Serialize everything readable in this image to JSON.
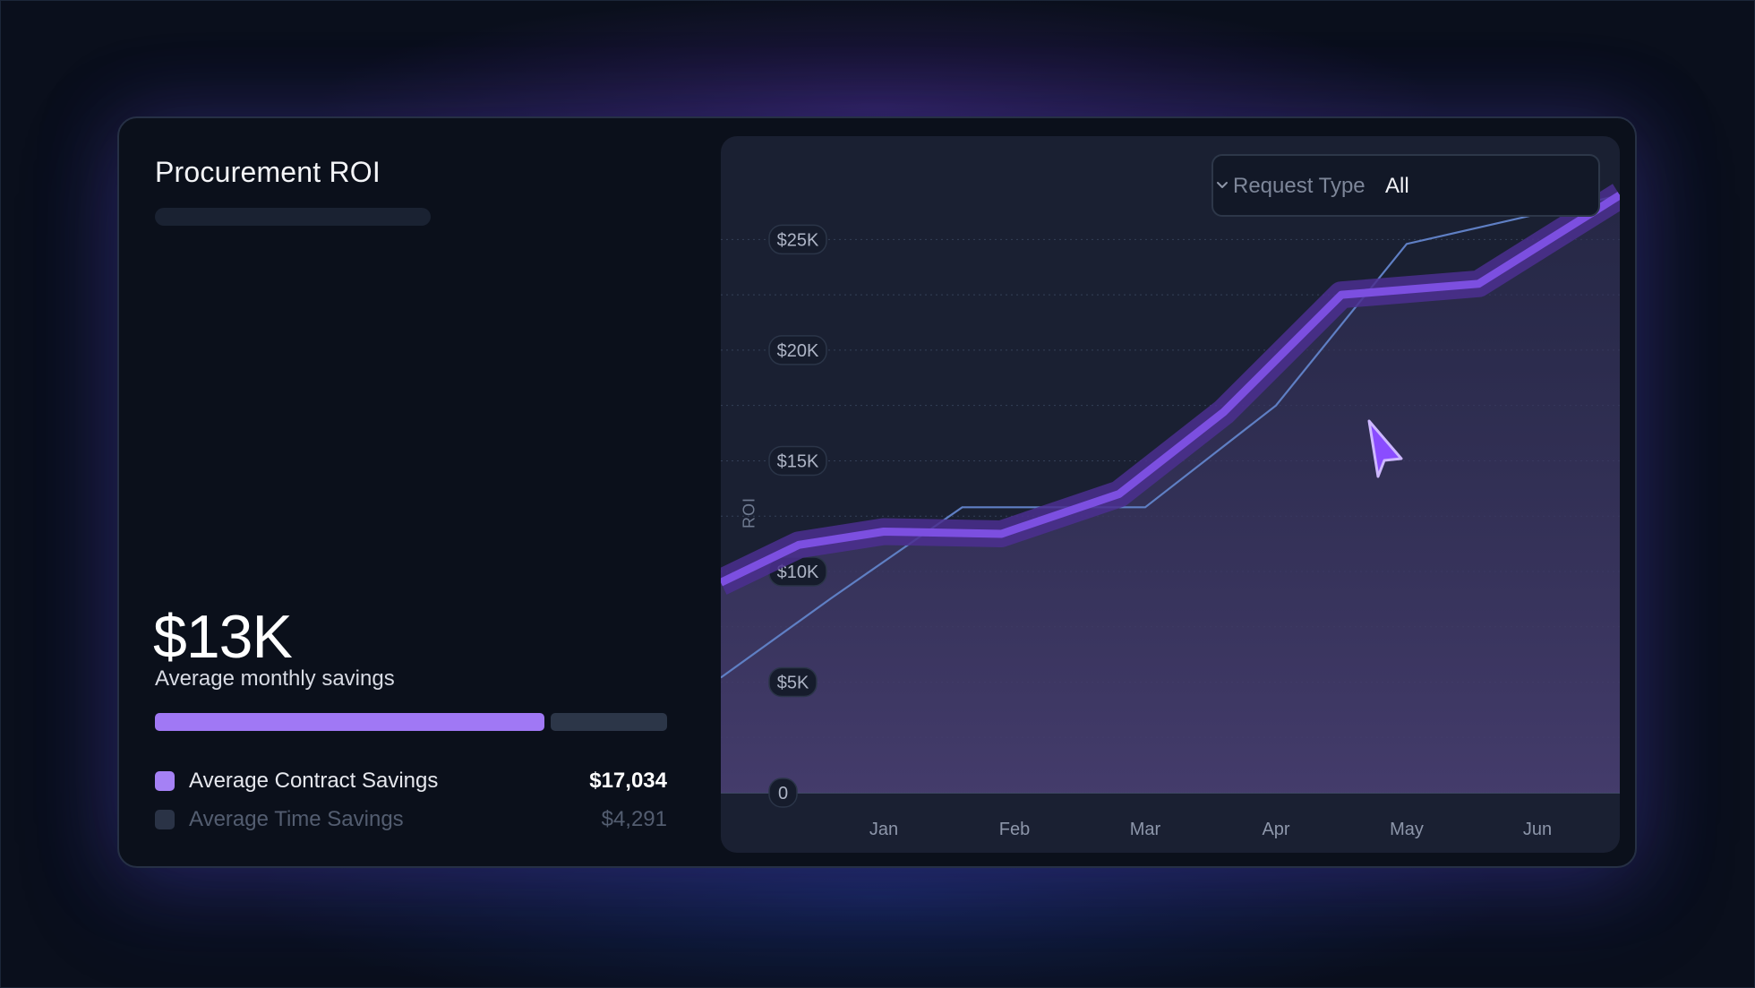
{
  "card": {
    "title": "Procurement ROI",
    "summary_value": "$13K",
    "summary_label": "Average monthly savings",
    "progress_fraction": 0.76,
    "legend": [
      {
        "label": "Average Contract Savings",
        "value": "$17,034",
        "color": "#a581f5"
      },
      {
        "label": "Average Time Savings",
        "value": "$4,291",
        "color": "#2a3346"
      }
    ]
  },
  "filter": {
    "label": "Request Type",
    "value": "All",
    "icon": "chevron-down-icon"
  },
  "colors": {
    "primary_series": "#7c4fe0",
    "secondary_series": "#5f7fc4",
    "cursor": "#8a4dff"
  },
  "cursor_icon": "cursor-arrow-icon",
  "chart_data": {
    "type": "line",
    "ylabel": "ROI",
    "categories": [
      "Jan",
      "Feb",
      "Mar",
      "Apr",
      "May",
      "Jun"
    ],
    "ylim": [
      0,
      27000
    ],
    "y_ticks": [
      {
        "value": 0,
        "label": "0"
      },
      {
        "value": 5000,
        "label": "$5K"
      },
      {
        "value": 10000,
        "label": "$10K"
      },
      {
        "value": 15000,
        "label": "$15K"
      },
      {
        "value": 20000,
        "label": "$20K"
      },
      {
        "value": 25000,
        "label": "$25K"
      }
    ],
    "grid": true,
    "series": [
      {
        "points": [
          {
            "x": 0.0,
            "y": 9500
          },
          {
            "x": 0.35,
            "y": 11200
          },
          {
            "x": 1.0,
            "y": 11800
          },
          {
            "x": 1.9,
            "y": 11700
          },
          {
            "x": 2.8,
            "y": 13500
          },
          {
            "x": 3.6,
            "y": 17200
          },
          {
            "x": 4.5,
            "y": 22500
          },
          {
            "x": 5.55,
            "y": 23000
          },
          {
            "x": 6.5,
            "y": 27000
          }
        ]
      },
      {
        "points": [
          {
            "x": 0.0,
            "y": 5200
          },
          {
            "x": 0.6,
            "y": 8800
          },
          {
            "x": 1.6,
            "y": 12900
          },
          {
            "x": 3.0,
            "y": 12900
          },
          {
            "x": 4.0,
            "y": 17500
          },
          {
            "x": 5.0,
            "y": 24800
          },
          {
            "x": 6.5,
            "y": 27000
          }
        ]
      }
    ]
  }
}
